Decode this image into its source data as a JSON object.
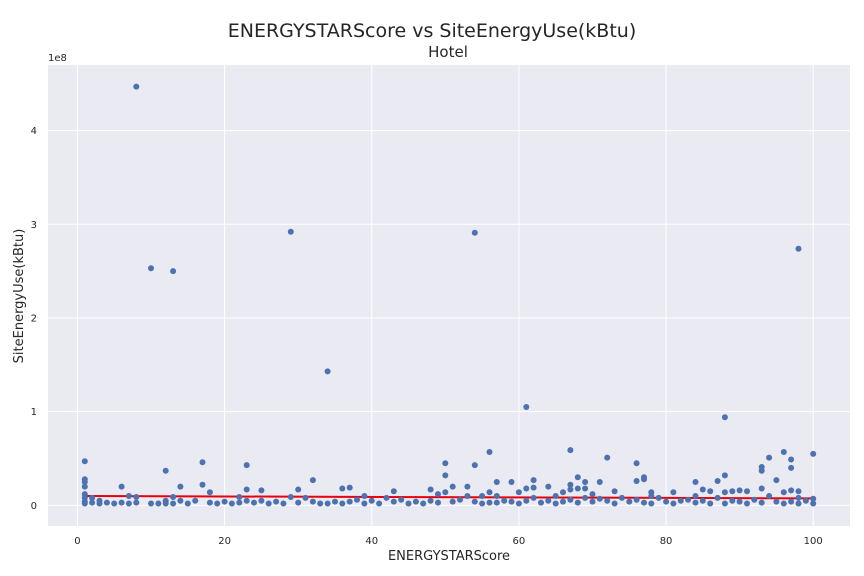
{
  "chart_data": {
    "type": "scatter",
    "title": "ENERGYSTARScore vs SiteEnergyUse(kBtu)",
    "subtitle": "Hotel",
    "xlabel": "ENERGYSTARScore",
    "ylabel": "SiteEnergyUse(kBtu)",
    "y_offset_label": "1e8",
    "xlim": [
      -4,
      105
    ],
    "ylim": [
      -0.22,
      4.7
    ],
    "xticks": [
      0,
      20,
      40,
      60,
      80,
      100
    ],
    "yticks": [
      0,
      1,
      2,
      3,
      4
    ],
    "grid": true,
    "point_color": "#4c72b0",
    "trend_color": "#e8000b",
    "background": "#eaeaf2",
    "trend_line": {
      "x": [
        1,
        100
      ],
      "y": [
        0.1,
        0.075
      ]
    },
    "points": [
      [
        1,
        0.47
      ],
      [
        1,
        0.28
      ],
      [
        1,
        0.25
      ],
      [
        1,
        0.2
      ],
      [
        1,
        0.12
      ],
      [
        1,
        0.08
      ],
      [
        1,
        0.04
      ],
      [
        1,
        0.02
      ],
      [
        2,
        0.08
      ],
      [
        2,
        0.03
      ],
      [
        3,
        0.05
      ],
      [
        3,
        0.02
      ],
      [
        4,
        0.03
      ],
      [
        5,
        0.02
      ],
      [
        6,
        0.2
      ],
      [
        6,
        0.03
      ],
      [
        7,
        0.1
      ],
      [
        7,
        0.02
      ],
      [
        8,
        4.47
      ],
      [
        8,
        0.09
      ],
      [
        8,
        0.03
      ],
      [
        10,
        2.53
      ],
      [
        10,
        0.02
      ],
      [
        11,
        0.02
      ],
      [
        12,
        0.37
      ],
      [
        12,
        0.05
      ],
      [
        12,
        0.02
      ],
      [
        13,
        2.5
      ],
      [
        13,
        0.09
      ],
      [
        13,
        0.02
      ],
      [
        14,
        0.2
      ],
      [
        14,
        0.05
      ],
      [
        15,
        0.02
      ],
      [
        16,
        0.05
      ],
      [
        17,
        0.46
      ],
      [
        17,
        0.22
      ],
      [
        18,
        0.14
      ],
      [
        18,
        0.03
      ],
      [
        19,
        0.02
      ],
      [
        20,
        0.04
      ],
      [
        21,
        0.02
      ],
      [
        22,
        0.09
      ],
      [
        22,
        0.03
      ],
      [
        23,
        0.43
      ],
      [
        23,
        0.17
      ],
      [
        23,
        0.05
      ],
      [
        24,
        0.03
      ],
      [
        25,
        0.16
      ],
      [
        25,
        0.05
      ],
      [
        26,
        0.02
      ],
      [
        27,
        0.04
      ],
      [
        28,
        0.02
      ],
      [
        29,
        2.92
      ],
      [
        29,
        0.09
      ],
      [
        30,
        0.17
      ],
      [
        30,
        0.03
      ],
      [
        31,
        0.08
      ],
      [
        32,
        0.27
      ],
      [
        32,
        0.04
      ],
      [
        33,
        0.02
      ],
      [
        34,
        1.43
      ],
      [
        34,
        0.02
      ],
      [
        35,
        0.04
      ],
      [
        36,
        0.18
      ],
      [
        36,
        0.02
      ],
      [
        37,
        0.19
      ],
      [
        37,
        0.04
      ],
      [
        38,
        0.06
      ],
      [
        39,
        0.1
      ],
      [
        39,
        0.02
      ],
      [
        40,
        0.05
      ],
      [
        41,
        0.02
      ],
      [
        42,
        0.08
      ],
      [
        43,
        0.15
      ],
      [
        43,
        0.04
      ],
      [
        44,
        0.06
      ],
      [
        45,
        0.02
      ],
      [
        46,
        0.04
      ],
      [
        47,
        0.02
      ],
      [
        48,
        0.17
      ],
      [
        48,
        0.05
      ],
      [
        49,
        0.12
      ],
      [
        49,
        0.03
      ],
      [
        50,
        0.45
      ],
      [
        50,
        0.32
      ],
      [
        50,
        0.14
      ],
      [
        51,
        0.2
      ],
      [
        51,
        0.04
      ],
      [
        52,
        0.06
      ],
      [
        53,
        0.2
      ],
      [
        53,
        0.1
      ],
      [
        54,
        2.91
      ],
      [
        54,
        0.43
      ],
      [
        54,
        0.04
      ],
      [
        55,
        0.1
      ],
      [
        55,
        0.02
      ],
      [
        56,
        0.57
      ],
      [
        56,
        0.14
      ],
      [
        56,
        0.03
      ],
      [
        57,
        0.25
      ],
      [
        57,
        0.1
      ],
      [
        57,
        0.03
      ],
      [
        58,
        0.05
      ],
      [
        59,
        0.25
      ],
      [
        59,
        0.04
      ],
      [
        60,
        0.14
      ],
      [
        60,
        0.02
      ],
      [
        61,
        1.05
      ],
      [
        61,
        0.18
      ],
      [
        61,
        0.05
      ],
      [
        62,
        0.27
      ],
      [
        62,
        0.19
      ],
      [
        62,
        0.08
      ],
      [
        63,
        0.03
      ],
      [
        64,
        0.2
      ],
      [
        64,
        0.05
      ],
      [
        65,
        0.1
      ],
      [
        65,
        0.02
      ],
      [
        66,
        0.14
      ],
      [
        66,
        0.04
      ],
      [
        67,
        0.59
      ],
      [
        67,
        0.22
      ],
      [
        67,
        0.17
      ],
      [
        67,
        0.06
      ],
      [
        68,
        0.3
      ],
      [
        68,
        0.18
      ],
      [
        68,
        0.03
      ],
      [
        69,
        0.25
      ],
      [
        69,
        0.18
      ],
      [
        69,
        0.08
      ],
      [
        70,
        0.12
      ],
      [
        70,
        0.04
      ],
      [
        71,
        0.25
      ],
      [
        71,
        0.07
      ],
      [
        72,
        0.51
      ],
      [
        72,
        0.05
      ],
      [
        73,
        0.15
      ],
      [
        73,
        0.02
      ],
      [
        74,
        0.08
      ],
      [
        75,
        0.04
      ],
      [
        76,
        0.45
      ],
      [
        76,
        0.26
      ],
      [
        76,
        0.06
      ],
      [
        77,
        0.3
      ],
      [
        77,
        0.28
      ],
      [
        77,
        0.03
      ],
      [
        78,
        0.14
      ],
      [
        78,
        0.1
      ],
      [
        78,
        0.02
      ],
      [
        79,
        0.08
      ],
      [
        80,
        0.04
      ],
      [
        81,
        0.14
      ],
      [
        81,
        0.02
      ],
      [
        82,
        0.05
      ],
      [
        83,
        0.06
      ],
      [
        84,
        0.25
      ],
      [
        84,
        0.1
      ],
      [
        84,
        0.03
      ],
      [
        85,
        0.17
      ],
      [
        85,
        0.05
      ],
      [
        86,
        0.15
      ],
      [
        86,
        0.02
      ],
      [
        87,
        0.26
      ],
      [
        87,
        0.08
      ],
      [
        88,
        0.94
      ],
      [
        88,
        0.32
      ],
      [
        88,
        0.14
      ],
      [
        88,
        0.02
      ],
      [
        89,
        0.15
      ],
      [
        89,
        0.05
      ],
      [
        90,
        0.16
      ],
      [
        90,
        0.04
      ],
      [
        91,
        0.15
      ],
      [
        91,
        0.02
      ],
      [
        92,
        0.06
      ],
      [
        93,
        0.41
      ],
      [
        93,
        0.37
      ],
      [
        93,
        0.18
      ],
      [
        93,
        0.03
      ],
      [
        94,
        0.51
      ],
      [
        94,
        0.1
      ],
      [
        95,
        0.27
      ],
      [
        95,
        0.04
      ],
      [
        96,
        0.57
      ],
      [
        96,
        0.14
      ],
      [
        96,
        0.02
      ],
      [
        97,
        0.49
      ],
      [
        97,
        0.4
      ],
      [
        97,
        0.16
      ],
      [
        97,
        0.04
      ],
      [
        98,
        2.74
      ],
      [
        98,
        0.15
      ],
      [
        98,
        0.08
      ],
      [
        98,
        0.02
      ],
      [
        99,
        0.05
      ],
      [
        100,
        0.55
      ],
      [
        100,
        0.07
      ],
      [
        100,
        0.02
      ]
    ]
  }
}
